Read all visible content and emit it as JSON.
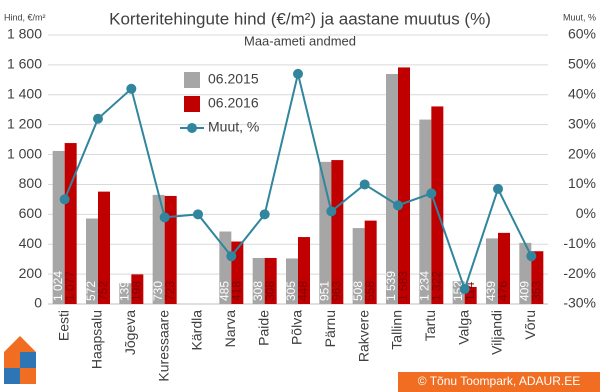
{
  "chart_data": {
    "type": "bar",
    "title": "Korteritehingute hind (€/m²) ja aastane muutus (%)",
    "subtitle": "Maa-ameti andmed",
    "y_label": "Hind, €/m²",
    "y2_label": "Muut, %",
    "categories": [
      "Eesti",
      "Haapsalu",
      "Jõgeva",
      "Kuressaare",
      "Kärdla",
      "Narva",
      "Paide",
      "Põlva",
      "Pärnu",
      "Rakvere",
      "Tallinn",
      "Tartu",
      "Valga",
      "Viljandi",
      "Võru"
    ],
    "series": [
      {
        "name": "06.2015",
        "type": "bar",
        "color": "#a6a6a6",
        "values": [
          1024,
          572,
          139,
          730,
          null,
          485,
          308,
          305,
          951,
          508,
          1539,
          1234,
          152,
          439,
          409
        ],
        "value_labels": [
          "1 024",
          "572",
          "139",
          "730",
          null,
          "485",
          "308",
          "305",
          "951",
          "508",
          "1 539",
          "1 234",
          "152",
          "439",
          "409"
        ]
      },
      {
        "name": "06.2016",
        "type": "bar",
        "color": "#c00000",
        "values": [
          1077,
          752,
          198,
          723,
          null,
          418,
          308,
          448,
          963,
          558,
          1583,
          1322,
          114,
          476,
          353
        ],
        "value_labels": [
          "1 077",
          "752",
          "198",
          "723",
          null,
          "418",
          "308",
          "448",
          "963",
          "558",
          "1 583",
          "1 322",
          "114",
          "476",
          "353"
        ]
      },
      {
        "name": "Muut, %",
        "type": "line",
        "axis": "y2",
        "color": "#31859c",
        "values": [
          5,
          32,
          42,
          -1,
          0,
          -14,
          0,
          47,
          1,
          10,
          3,
          7,
          -25,
          8.5,
          -14
        ]
      }
    ],
    "ylim": [
      0,
      1800
    ],
    "yticks": [
      0,
      200,
      400,
      600,
      800,
      {
        "value": 1000,
        "label": "1 000"
      },
      {
        "value": 1200,
        "label": "1 200"
      },
      {
        "value": 1400,
        "label": "1 400"
      },
      {
        "value": 1600,
        "label": "1 600"
      },
      {
        "value": 1800,
        "label": "1 800"
      }
    ],
    "y2lim": [
      -30,
      60
    ],
    "y2ticks": [
      {
        "value": -30,
        "label": "-30%"
      },
      {
        "value": -20,
        "label": "-20%"
      },
      {
        "value": -10,
        "label": "-10%"
      },
      {
        "value": 0,
        "label": "0%"
      },
      {
        "value": 10,
        "label": "10%"
      },
      {
        "value": 20,
        "label": "20%"
      },
      {
        "value": 30,
        "label": "30%"
      },
      {
        "value": 40,
        "label": "40%"
      },
      {
        "value": 50,
        "label": "50%"
      },
      {
        "value": 60,
        "label": "60%"
      }
    ],
    "grid": true,
    "legend": "top"
  },
  "footer": "© Tõnu Toompark, ADAUR.EE"
}
